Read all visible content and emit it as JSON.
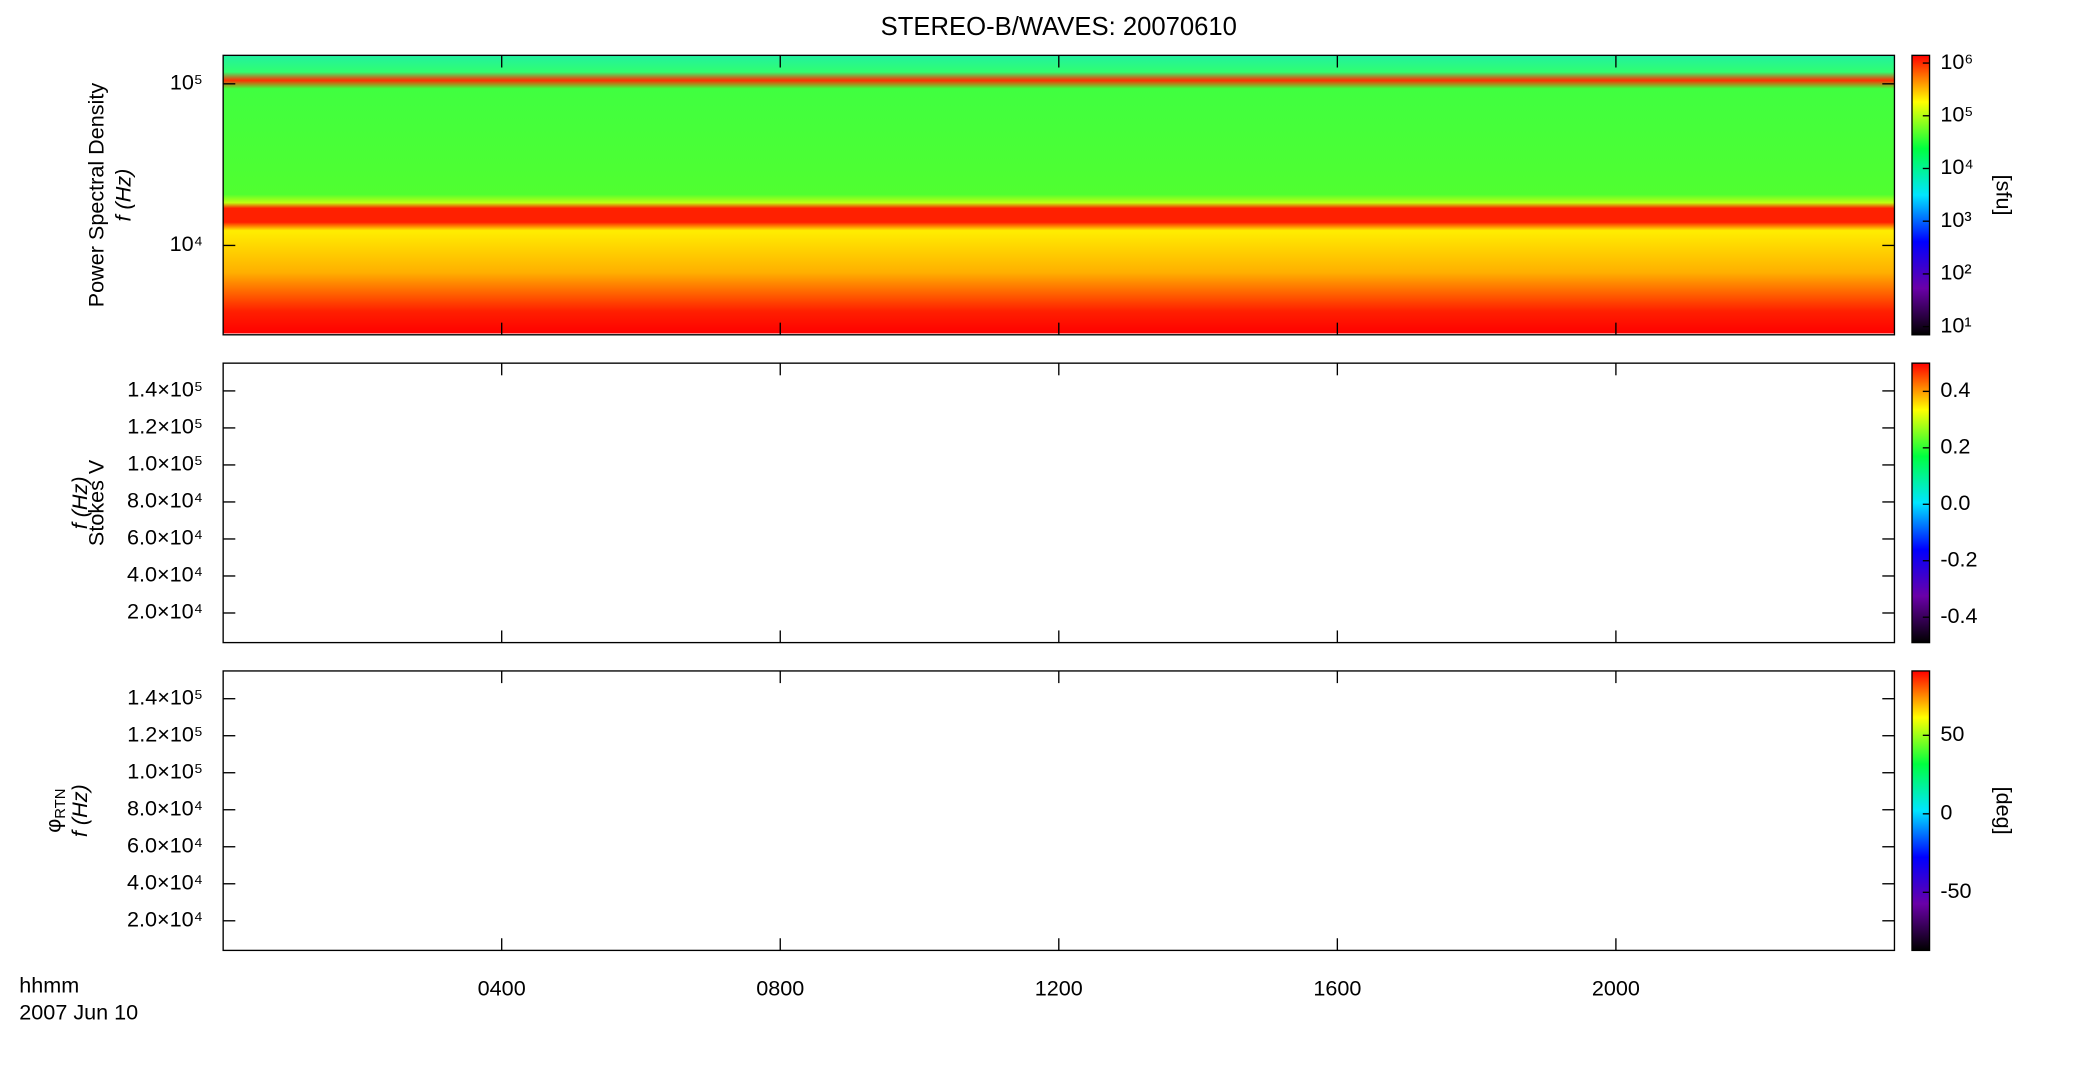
{
  "title": "STEREO-B/WAVES: 20070610",
  "x_axis": {
    "xlim": [
      0,
      24
    ],
    "xticks": [
      {
        "value": 4,
        "label": "0400"
      },
      {
        "value": 8,
        "label": "0800"
      },
      {
        "value": 12,
        "label": "1200"
      },
      {
        "value": 16,
        "label": "1600"
      },
      {
        "value": 20,
        "label": "2000"
      }
    ],
    "label": "hhmm",
    "date": "2007 Jun 10"
  },
  "chart_data": [
    {
      "type": "heatmap",
      "ylabel": "Power Spectral Density",
      "ylabel2": "f (Hz)",
      "yscale": "log",
      "ylim": [
        2800,
        150000
      ],
      "yticks": [
        {
          "value": 10000,
          "label": "10⁴"
        },
        {
          "value": 100000,
          "label": "10⁵"
        }
      ],
      "colorbar": {
        "scale": "log",
        "lim": [
          7,
          1400000
        ],
        "label": "[sfu]",
        "ticks": [
          {
            "value": 10,
            "label": "10¹"
          },
          {
            "value": 100,
            "label": "10²"
          },
          {
            "value": 1000,
            "label": "10³"
          },
          {
            "value": 10000,
            "label": "10⁴"
          },
          {
            "value": 100000,
            "label": "10⁵"
          },
          {
            "value": 1000000,
            "label": "10⁶"
          }
        ]
      }
    },
    {
      "type": "heatmap",
      "ylabel": "Stokes V",
      "ylabel2": "f (Hz)",
      "yscale": "linear",
      "ylim": [
        4000,
        155000
      ],
      "yticks": [
        {
          "value": 20000,
          "label": "2.0×10⁴"
        },
        {
          "value": 40000,
          "label": "4.0×10⁴"
        },
        {
          "value": 60000,
          "label": "6.0×10⁴"
        },
        {
          "value": 80000,
          "label": "8.0×10⁴"
        },
        {
          "value": 100000,
          "label": "1.0×10⁵"
        },
        {
          "value": 120000,
          "label": "1.2×10⁵"
        },
        {
          "value": 140000,
          "label": "1.4×10⁵"
        }
      ],
      "colorbar": {
        "scale": "linear",
        "lim": [
          -0.49,
          0.5
        ],
        "ticks": [
          -0.4,
          -0.2,
          {
            "value": 0,
            "label": "0.0"
          },
          0.2,
          0.4
        ]
      }
    },
    {
      "type": "heatmap",
      "ylabel": "φ",
      "ylabel_sub": "RTN",
      "ylabel2": "f (Hz)",
      "yscale": "linear",
      "ylim": [
        4000,
        155000
      ],
      "yticks": [
        {
          "value": 20000,
          "label": "2.0×10⁴"
        },
        {
          "value": 40000,
          "label": "4.0×10⁴"
        },
        {
          "value": 60000,
          "label": "6.0×10⁴"
        },
        {
          "value": 80000,
          "label": "8.0×10⁴"
        },
        {
          "value": 100000,
          "label": "1.0×10⁵"
        },
        {
          "value": 120000,
          "label": "1.2×10⁵"
        },
        {
          "value": 140000,
          "label": "1.4×10⁵"
        }
      ],
      "colorbar": {
        "scale": "linear",
        "lim": [
          -87,
          91
        ],
        "label": "[deg]",
        "ticks": [
          -50,
          0,
          50
        ]
      }
    }
  ],
  "colormap": [
    "#000000",
    "#6a00a8",
    "#0000ff",
    "#00e5ff",
    "#00ff40",
    "#ffff00",
    "#ff0000"
  ]
}
